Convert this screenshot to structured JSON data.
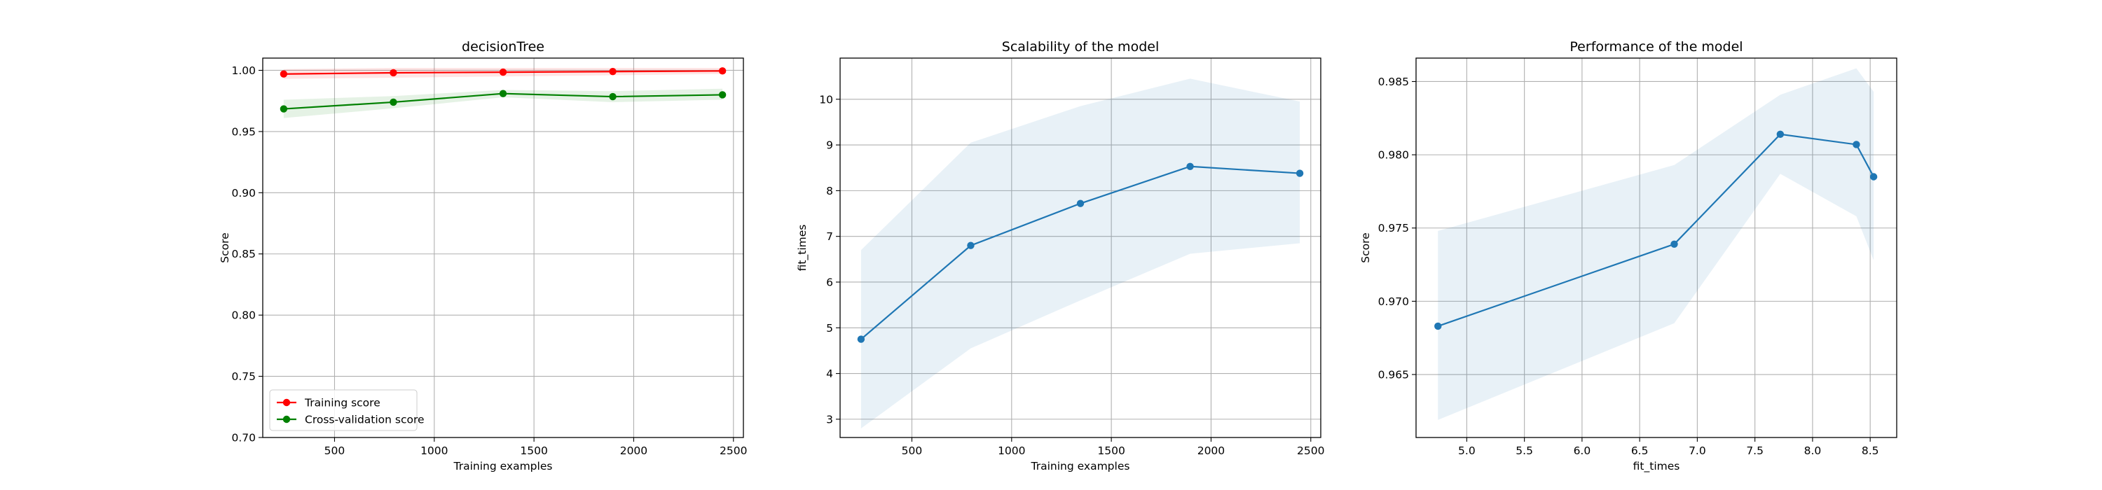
{
  "chart_data": [
    {
      "type": "line",
      "title": "decisionTree",
      "xlabel": "Training examples",
      "ylabel": "Score",
      "xlim": [
        140,
        2550
      ],
      "ylim": [
        0.7,
        1.01
      ],
      "xticks": [
        500,
        1000,
        1500,
        2000,
        2500
      ],
      "yticks": [
        0.7,
        0.75,
        0.8,
        0.85,
        0.9,
        0.95,
        1.0
      ],
      "xtick_labels": [
        "500",
        "1000",
        "1500",
        "2000",
        "2500"
      ],
      "ytick_labels": [
        "0.70",
        "0.75",
        "0.80",
        "0.85",
        "0.90",
        "0.95",
        "1.00"
      ],
      "grid": true,
      "legend_position": "lower-left",
      "x": [
        245,
        795,
        1345,
        1895,
        2445
      ],
      "series": [
        {
          "name": "Training score",
          "color": "#ff0000",
          "values": [
            0.997,
            0.998,
            0.9985,
            0.999,
            0.9995
          ],
          "band_low": [
            0.993,
            0.994,
            0.995,
            0.996,
            0.997
          ],
          "band_high": [
            1.001,
            1.002,
            1.002,
            1.002,
            1.002
          ]
        },
        {
          "name": "Cross-validation score",
          "color": "#008000",
          "values": [
            0.9685,
            0.974,
            0.981,
            0.9785,
            0.98
          ],
          "band_low": [
            0.961,
            0.969,
            0.978,
            0.974,
            0.976
          ],
          "band_high": [
            0.976,
            0.979,
            0.984,
            0.983,
            0.985
          ]
        }
      ]
    },
    {
      "type": "line",
      "title": "Scalability of the model",
      "xlabel": "Training examples",
      "ylabel": "fit_times",
      "xlim": [
        140,
        2550
      ],
      "ylim": [
        2.6,
        10.9
      ],
      "xticks": [
        500,
        1000,
        1500,
        2000,
        2500
      ],
      "yticks": [
        3,
        4,
        5,
        6,
        7,
        8,
        9,
        10
      ],
      "xtick_labels": [
        "500",
        "1000",
        "1500",
        "2000",
        "2500"
      ],
      "ytick_labels": [
        "3",
        "4",
        "5",
        "6",
        "7",
        "8",
        "9",
        "10"
      ],
      "grid": true,
      "x": [
        245,
        795,
        1345,
        1895,
        2445
      ],
      "series": [
        {
          "color": "#1f77b4",
          "values": [
            4.75,
            6.8,
            7.72,
            8.53,
            8.38
          ],
          "band_low": [
            2.8,
            4.55,
            5.6,
            6.62,
            6.85
          ],
          "band_high": [
            6.7,
            9.05,
            9.85,
            10.45,
            9.95
          ]
        }
      ]
    },
    {
      "type": "line",
      "title": "Performance of the model",
      "xlabel": "fit_times",
      "ylabel": "Score",
      "xlim": [
        4.56,
        8.73
      ],
      "ylim": [
        0.9607,
        0.9866
      ],
      "xticks": [
        5.0,
        5.5,
        6.0,
        6.5,
        7.0,
        7.5,
        8.0,
        8.5
      ],
      "yticks": [
        0.965,
        0.97,
        0.975,
        0.98,
        0.985
      ],
      "xtick_labels": [
        "5.0",
        "5.5",
        "6.0",
        "6.5",
        "7.0",
        "7.5",
        "8.0",
        "8.5"
      ],
      "ytick_labels": [
        "0.965",
        "0.970",
        "0.975",
        "0.980",
        "0.985"
      ],
      "grid": true,
      "x": [
        4.75,
        6.8,
        7.72,
        8.38,
        8.53
      ],
      "series": [
        {
          "color": "#1f77b4",
          "values": [
            0.9683,
            0.9739,
            0.9814,
            0.9807,
            0.9785
          ],
          "band_low": [
            0.9619,
            0.9685,
            0.9787,
            0.9758,
            0.9728
          ],
          "band_high": [
            0.9748,
            0.9793,
            0.9841,
            0.9859,
            0.9843
          ]
        }
      ]
    }
  ]
}
